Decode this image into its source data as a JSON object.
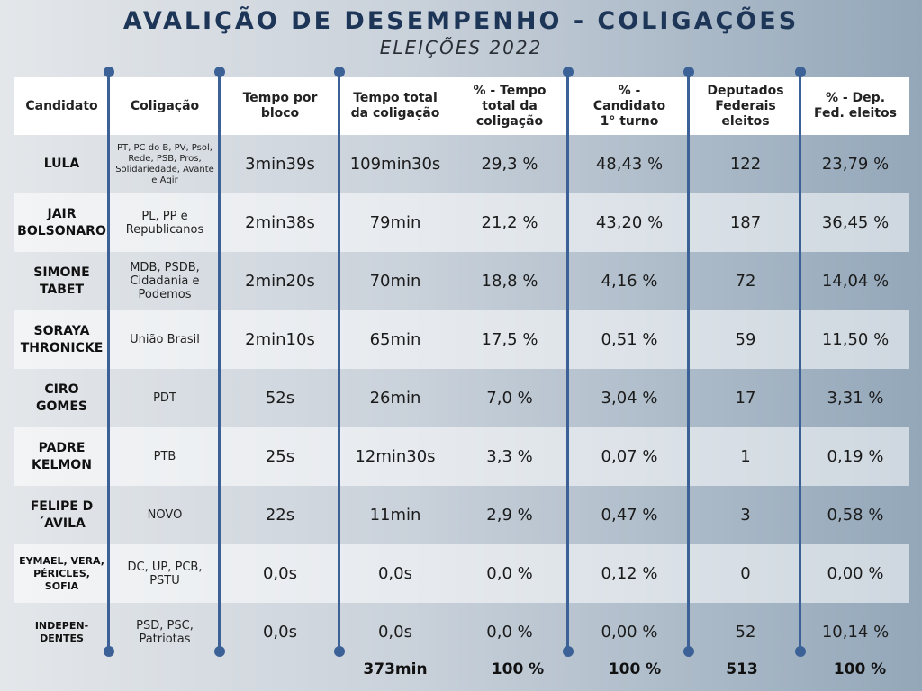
{
  "title": "AVALIÇÃO DE DESEMPENHO - COLIGAÇÕES",
  "subtitle": "ELEIÇÕES 2022",
  "headers": {
    "candidato": "Candidato",
    "coligacao": "Coligação",
    "tempo_bloco": "Tempo por bloco",
    "tempo_total": "Tempo total da coligação",
    "pct_tempo": "% - Tempo total da coligação",
    "pct_candidato": "% - Candidato 1° turno",
    "deputados": "Deputados Federais eleitos",
    "pct_dep": "% - Dep. Fed. eleitos"
  },
  "rows": [
    {
      "candidato": "LULA",
      "coligacao": "PT, PC do B, PV, Psol, Rede, PSB, Pros, Solidariedade, Avante e Agir",
      "tempo_bloco": "3min39s",
      "tempo_total": "109min30s",
      "pct_tempo": "29,3 %",
      "pct_candidato": "48,43 %",
      "deputados": "122",
      "pct_dep": "23,79 %"
    },
    {
      "candidato": "JAIR BOLSONARO",
      "coligacao": "PL, PP e Republicanos",
      "tempo_bloco": "2min38s",
      "tempo_total": "79min",
      "pct_tempo": "21,2 %",
      "pct_candidato": "43,20 %",
      "deputados": "187",
      "pct_dep": "36,45 %"
    },
    {
      "candidato": "SIMONE TABET",
      "coligacao": "MDB, PSDB, Cidadania e Podemos",
      "tempo_bloco": "2min20s",
      "tempo_total": "70min",
      "pct_tempo": "18,8 %",
      "pct_candidato": "4,16 %",
      "deputados": "72",
      "pct_dep": "14,04 %"
    },
    {
      "candidato": "SORAYA THRONICKE",
      "coligacao": "União Brasil",
      "tempo_bloco": "2min10s",
      "tempo_total": "65min",
      "pct_tempo": "17,5 %",
      "pct_candidato": "0,51 %",
      "deputados": "59",
      "pct_dep": "11,50 %"
    },
    {
      "candidato": "CIRO GOMES",
      "coligacao": "PDT",
      "tempo_bloco": "52s",
      "tempo_total": "26min",
      "pct_tempo": "7,0 %",
      "pct_candidato": "3,04 %",
      "deputados": "17",
      "pct_dep": "3,31 %"
    },
    {
      "candidato": "PADRE KELMON",
      "coligacao": "PTB",
      "tempo_bloco": "25s",
      "tempo_total": "12min30s",
      "pct_tempo": "3,3 %",
      "pct_candidato": "0,07 %",
      "deputados": "1",
      "pct_dep": "0,19 %"
    },
    {
      "candidato": "FELIPE D´AVILA",
      "coligacao": "NOVO",
      "tempo_bloco": "22s",
      "tempo_total": "11min",
      "pct_tempo": "2,9 %",
      "pct_candidato": "0,47 %",
      "deputados": "3",
      "pct_dep": "0,58 %"
    },
    {
      "candidato": "EYMAEL, VERA, PÉRICLES, SOFIA",
      "coligacao": "DC, UP, PCB, PSTU",
      "tempo_bloco": "0,0s",
      "tempo_total": "0,0s",
      "pct_tempo": "0,0 %",
      "pct_candidato": "0,12 %",
      "deputados": "0",
      "pct_dep": "0,00 %"
    },
    {
      "candidato": "INDEPEN- DENTES",
      "coligacao": "PSD, PSC, Patriotas",
      "tempo_bloco": "0,0s",
      "tempo_total": "0,0s",
      "pct_tempo": "0,0 %",
      "pct_candidato": "0,00 %",
      "deputados": "52",
      "pct_dep": "10,14 %"
    }
  ],
  "totals": {
    "tempo_total": "373min",
    "pct_tempo": "100 %",
    "pct_candidato": "100 %",
    "deputados": "513",
    "pct_dep": "100 %"
  },
  "colors": {
    "accent": "#3b6196",
    "title": "#1d3557"
  }
}
